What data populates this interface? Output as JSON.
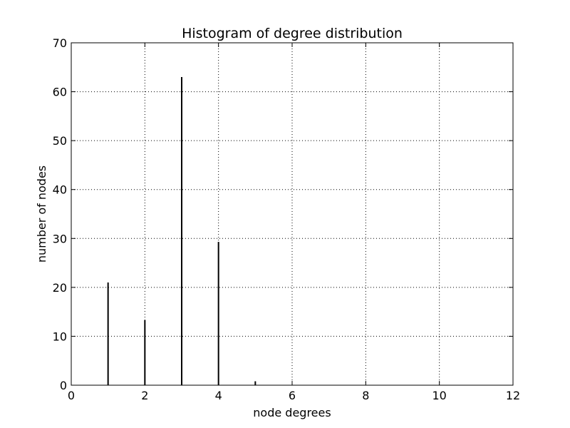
{
  "chart_data": {
    "type": "bar",
    "title": "Histogram of degree distribution",
    "xlabel": "node degrees",
    "ylabel": "number of nodes",
    "xlim": [
      0,
      12
    ],
    "ylim": [
      0,
      70
    ],
    "xticks": [
      0,
      2,
      4,
      6,
      8,
      10,
      12
    ],
    "yticks": [
      0,
      10,
      20,
      30,
      40,
      50,
      60,
      70
    ],
    "grid": true,
    "bar_color": "#000000",
    "x": [
      1,
      2,
      3,
      4,
      5
    ],
    "values": [
      21,
      13.3,
      63,
      29.3,
      0.8
    ]
  }
}
